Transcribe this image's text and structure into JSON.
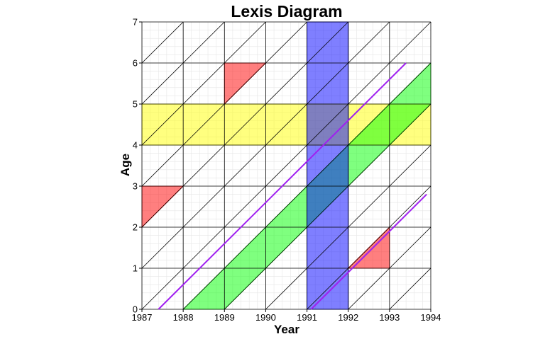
{
  "chart_data": {
    "type": "lexis",
    "title": "Lexis Diagram",
    "xlabel": "Year",
    "ylabel": "Age",
    "xlim": [
      1987,
      1994
    ],
    "ylim": [
      0,
      7
    ],
    "x_ticks": [
      "1987",
      "1988",
      "1989",
      "1990",
      "1991",
      "1992",
      "1993",
      "1994"
    ],
    "y_ticks": [
      "0",
      "1",
      "2",
      "3",
      "4",
      "5",
      "6",
      "7"
    ],
    "grid": true,
    "colors": {
      "age_band": "#ffff00",
      "period_band": "#0000ff",
      "cohort_band": "#00ff00",
      "triangle": "#ff0000",
      "lifeline": "#a020f0",
      "grid_line": "#000000",
      "minor_grid": "#e6e6e6"
    },
    "age_band": {
      "age_from": 4,
      "age_to": 5
    },
    "period_band": {
      "year_from": 1991,
      "year_to": 1992
    },
    "cohort_band": {
      "birth_from": 1988,
      "birth_to": 1989,
      "year_end": 1994
    },
    "triangles": [
      {
        "points": [
          [
            1987,
            2
          ],
          [
            1987,
            3
          ],
          [
            1988,
            3
          ]
        ]
      },
      {
        "points": [
          [
            1989,
            5
          ],
          [
            1989,
            6
          ],
          [
            1990,
            6
          ]
        ]
      },
      {
        "points": [
          [
            1992,
            1
          ],
          [
            1993,
            2
          ],
          [
            1993,
            1
          ]
        ]
      }
    ],
    "lifelines": [
      {
        "birth": 1987.4,
        "end": 1993.4
      },
      {
        "birth": 1991.1,
        "end": 1993.9
      }
    ]
  }
}
